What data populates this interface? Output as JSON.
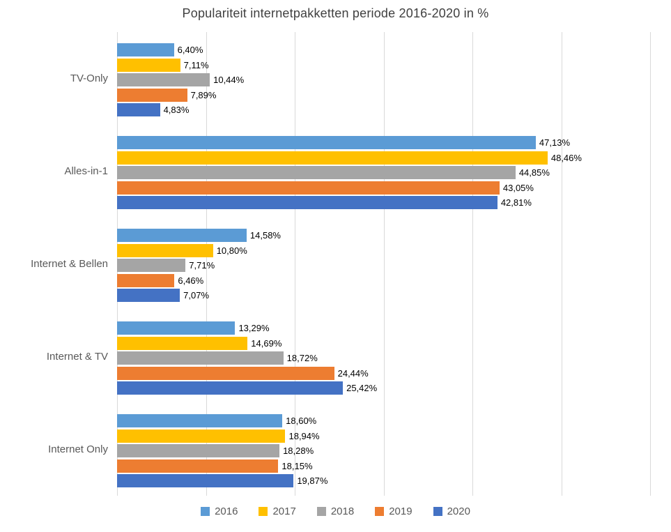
{
  "chart_data": {
    "type": "bar",
    "orientation": "horizontal",
    "title": "Populariteit internetpakketten periode 2016-2020 in %",
    "categories": [
      "TV-Only",
      "Alles-in-1",
      "Internet & Bellen",
      "Internet & TV",
      "Internet Only"
    ],
    "series": [
      {
        "name": "2016",
        "color": "#5B9BD5",
        "values": [
          6.4,
          47.13,
          14.58,
          13.29,
          18.6
        ],
        "labels": [
          "6,40%",
          "47,13%",
          "14,58%",
          "13,29%",
          "18,60%"
        ]
      },
      {
        "name": "2017",
        "color": "#FFC000",
        "values": [
          7.11,
          48.46,
          10.8,
          14.69,
          18.94
        ],
        "labels": [
          "7,11%",
          "48,46%",
          "10,80%",
          "14,69%",
          "18,94%"
        ]
      },
      {
        "name": "2018",
        "color": "#A5A5A5",
        "values": [
          10.44,
          44.85,
          7.71,
          18.72,
          18.28
        ],
        "labels": [
          "10,44%",
          "44,85%",
          "7,71%",
          "18,72%",
          "18,28%"
        ]
      },
      {
        "name": "2019",
        "color": "#ED7D31",
        "values": [
          7.89,
          43.05,
          6.46,
          24.44,
          18.15
        ],
        "labels": [
          "7,89%",
          "43,05%",
          "6,46%",
          "24,44%",
          "18,15%"
        ]
      },
      {
        "name": "2020",
        "color": "#4472C4",
        "values": [
          4.83,
          42.81,
          7.07,
          25.42,
          19.87
        ],
        "labels": [
          "4,83%",
          "42,81%",
          "7,07%",
          "25,42%",
          "19,87%"
        ]
      }
    ],
    "bar_order_top_to_bottom": [
      "2016",
      "2017",
      "2018",
      "2019",
      "2020"
    ],
    "category_order_top_to_bottom": [
      "TV-Only",
      "Alles-in-1",
      "Internet & Bellen",
      "Internet & TV",
      "Internet Only"
    ],
    "xlim": [
      0,
      60
    ],
    "gridline_step": 10,
    "grid": true,
    "gridline_color": "#D9D9D9",
    "value_labels_visible": true,
    "axis_tick_labels_visible": false,
    "legend_position": "bottom",
    "legend": [
      "2016",
      "2017",
      "2018",
      "2019",
      "2020"
    ]
  },
  "colors": {
    "title": "#404040",
    "axis_label": "#595959",
    "value_label": "#000000",
    "background": "#FFFFFF"
  }
}
